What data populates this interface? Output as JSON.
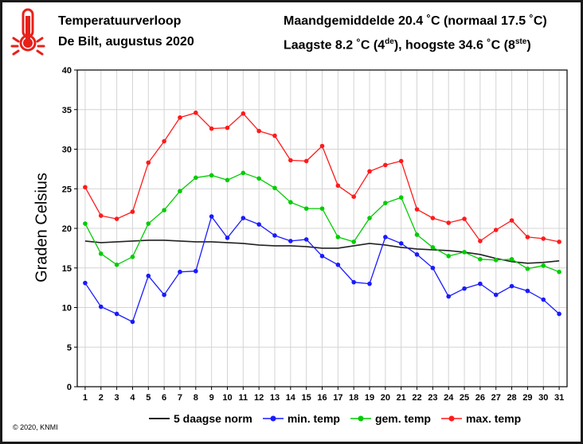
{
  "header": {
    "title": "Temperatuurverloop",
    "subtitle": "De Bilt, augustus 2020",
    "month_avg": "Maandgemiddelde 20.4 ˚C (normaal 17.5 ˚C)",
    "low_prefix": "Laagste 8.2 ˚C (4",
    "low_sup": "de",
    "high_prefix": "), hoogste 34.6 ˚C (8",
    "high_sup": "ste",
    "suffix": ")"
  },
  "icon": "thermometer-icon",
  "copyright": "© 2020, KNMI",
  "colors": {
    "norm": "#222222",
    "min": "#1a1aff",
    "avg": "#00cc00",
    "max": "#ff1a1a",
    "grid": "#d4d4d4"
  },
  "chart_data": {
    "type": "line",
    "ylabel": "Graden Celsius",
    "ylim": [
      0,
      40
    ],
    "yticks": [
      0,
      5,
      10,
      15,
      20,
      25,
      30,
      35,
      40
    ],
    "x": [
      1,
      2,
      3,
      4,
      5,
      6,
      7,
      8,
      9,
      10,
      11,
      12,
      13,
      14,
      15,
      16,
      17,
      18,
      19,
      20,
      21,
      22,
      23,
      24,
      25,
      26,
      27,
      28,
      29,
      30,
      31
    ],
    "grid": true,
    "legend_position": "bottom",
    "series": [
      {
        "name": "5 daagse norm",
        "key": "norm",
        "markers": false,
        "values": [
          18.4,
          18.2,
          18.3,
          18.4,
          18.5,
          18.5,
          18.4,
          18.3,
          18.3,
          18.2,
          18.1,
          17.9,
          17.8,
          17.8,
          17.7,
          17.5,
          17.5,
          17.8,
          18.1,
          17.9,
          17.6,
          17.4,
          17.3,
          17.2,
          17.0,
          16.7,
          16.2,
          15.8,
          15.6,
          15.7,
          15.9
        ]
      },
      {
        "name": "min. temp",
        "key": "min",
        "markers": true,
        "values": [
          13.1,
          10.1,
          9.2,
          8.2,
          14.0,
          11.6,
          14.5,
          14.6,
          21.5,
          18.8,
          21.3,
          20.5,
          19.1,
          18.4,
          18.6,
          16.5,
          15.4,
          13.2,
          13.0,
          18.9,
          18.1,
          16.7,
          15.0,
          11.4,
          12.4,
          13.0,
          11.6,
          12.7,
          12.1,
          11.0,
          9.2
        ]
      },
      {
        "name": "gem. temp",
        "key": "avg",
        "markers": true,
        "values": [
          20.6,
          16.8,
          15.4,
          16.4,
          20.6,
          22.3,
          24.7,
          26.4,
          26.7,
          26.1,
          27.0,
          26.3,
          25.1,
          23.3,
          22.5,
          22.5,
          18.9,
          18.3,
          21.3,
          23.2,
          23.9,
          19.2,
          17.6,
          16.5,
          17.0,
          16.1,
          16.0,
          16.1,
          14.9,
          15.3,
          14.5
        ]
      },
      {
        "name": "max. temp",
        "key": "max",
        "markers": true,
        "values": [
          25.2,
          21.6,
          21.2,
          22.1,
          28.3,
          31.0,
          34.0,
          34.6,
          32.6,
          32.7,
          34.5,
          32.3,
          31.7,
          28.6,
          28.5,
          30.4,
          25.4,
          24.0,
          27.2,
          28.0,
          28.5,
          22.4,
          21.3,
          20.7,
          21.2,
          18.4,
          19.8,
          21.0,
          18.9,
          18.7,
          18.3
        ]
      }
    ]
  }
}
